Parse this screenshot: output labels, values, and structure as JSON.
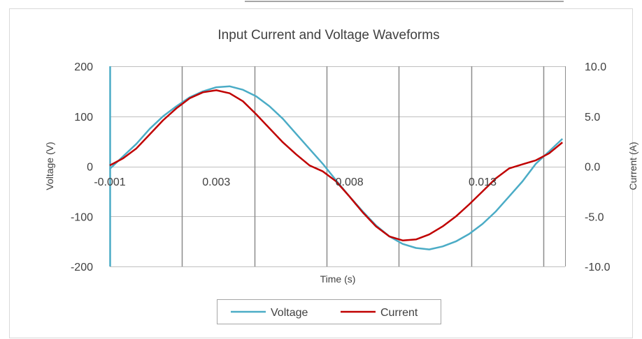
{
  "chart_data": {
    "type": "line",
    "title": "Input Current and Voltage Waveforms",
    "xlabel": "Time (s)",
    "ylabel": "Voltage (V)",
    "y2label": "Current (A)",
    "x_ticks": [
      "-0.001",
      "0.003",
      "0.008",
      "0.013"
    ],
    "x_tick_values": [
      -0.001,
      0.003,
      0.008,
      0.013
    ],
    "xlim": [
      -0.001,
      0.0161
    ],
    "ylim": [
      -200,
      200
    ],
    "y_ticks": [
      "200",
      "100",
      "0",
      "-100",
      "-200"
    ],
    "y_tick_values": [
      200,
      100,
      0,
      -100,
      -200
    ],
    "y2lim": [
      -10.0,
      10.0
    ],
    "y2_ticks": [
      "10.0",
      "5.0",
      "0.0",
      "-5.0",
      "-10.0"
    ],
    "y2_tick_values": [
      10.0,
      5.0,
      0.0,
      -5.0,
      -10.0
    ],
    "grid": true,
    "legend_position": "bottom",
    "series": [
      {
        "name": "Voltage",
        "axis": "left",
        "color": "#4bacc6",
        "x": [
          -0.001,
          -0.0005,
          0.0,
          0.0005,
          0.001,
          0.0015,
          0.002,
          0.0025,
          0.003,
          0.0035,
          0.004,
          0.0045,
          0.005,
          0.0055,
          0.006,
          0.0065,
          0.007,
          0.0075,
          0.008,
          0.0085,
          0.009,
          0.0095,
          0.01,
          0.0105,
          0.011,
          0.0115,
          0.012,
          0.0125,
          0.013,
          0.0135,
          0.014,
          0.0145,
          0.015,
          0.0155,
          0.016
        ],
        "y": [
          -5,
          20,
          45,
          75,
          100,
          120,
          138,
          150,
          158,
          160,
          153,
          140,
          120,
          95,
          65,
          35,
          5,
          -28,
          -60,
          -90,
          -118,
          -140,
          -155,
          -163,
          -166,
          -160,
          -150,
          -135,
          -115,
          -90,
          -60,
          -30,
          5,
          30,
          55
        ]
      },
      {
        "name": "Current",
        "axis": "right",
        "color": "#c00000",
        "x": [
          -0.001,
          -0.0005,
          0.0,
          0.0005,
          0.001,
          0.0015,
          0.002,
          0.0025,
          0.003,
          0.0035,
          0.004,
          0.0045,
          0.005,
          0.0055,
          0.006,
          0.0065,
          0.007,
          0.0075,
          0.008,
          0.0085,
          0.009,
          0.0095,
          0.01,
          0.0105,
          0.011,
          0.0115,
          0.012,
          0.0125,
          0.013,
          0.0135,
          0.014,
          0.0145,
          0.015,
          0.0155,
          0.016
        ],
        "y": [
          0.1,
          0.8,
          1.8,
          3.2,
          4.6,
          5.8,
          6.8,
          7.4,
          7.6,
          7.3,
          6.5,
          5.2,
          3.8,
          2.4,
          1.2,
          0.1,
          -0.5,
          -1.5,
          -3.0,
          -4.6,
          -6.0,
          -7.0,
          -7.4,
          -7.3,
          -6.8,
          -6.0,
          -5.0,
          -3.8,
          -2.5,
          -1.2,
          -0.2,
          0.2,
          0.6,
          1.3,
          2.4
        ]
      }
    ]
  }
}
